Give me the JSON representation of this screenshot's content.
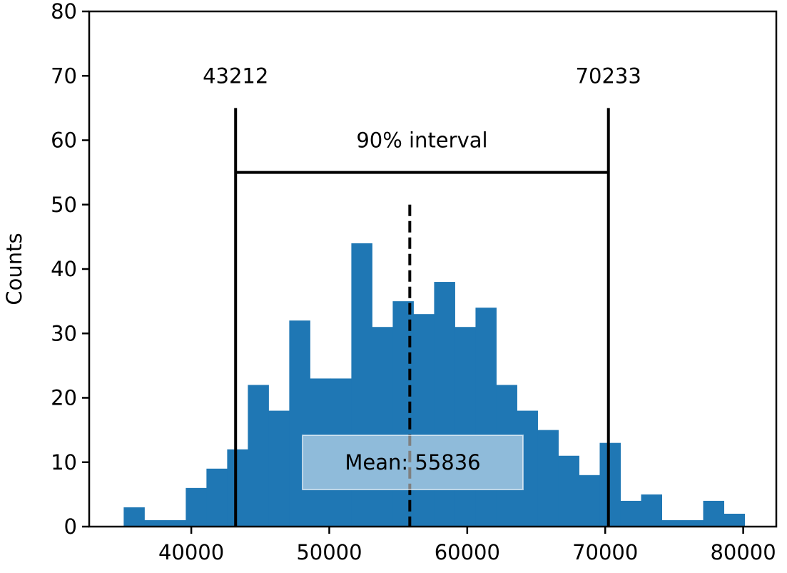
{
  "chart_data": {
    "type": "bar",
    "subtype": "histogram",
    "title": "",
    "xlabel": "",
    "ylabel": "Counts",
    "xlim": [
      32600,
      82400
    ],
    "ylim": [
      0,
      80
    ],
    "grid": false,
    "legend": null,
    "bar_color": "#1f77b4",
    "bin_start": 35100,
    "bin_width": 1500,
    "bins": [
      {
        "x0": 35100,
        "x1": 36600,
        "count": 3
      },
      {
        "x0": 36600,
        "x1": 38100,
        "count": 1
      },
      {
        "x0": 38100,
        "x1": 39600,
        "count": 1
      },
      {
        "x0": 39600,
        "x1": 41100,
        "count": 6
      },
      {
        "x0": 41100,
        "x1": 42600,
        "count": 9
      },
      {
        "x0": 42600,
        "x1": 44100,
        "count": 12
      },
      {
        "x0": 44100,
        "x1": 45600,
        "count": 22
      },
      {
        "x0": 45600,
        "x1": 47100,
        "count": 18
      },
      {
        "x0": 47100,
        "x1": 48600,
        "count": 32
      },
      {
        "x0": 48600,
        "x1": 50100,
        "count": 23
      },
      {
        "x0": 50100,
        "x1": 51600,
        "count": 23
      },
      {
        "x0": 51600,
        "x1": 53100,
        "count": 44
      },
      {
        "x0": 53100,
        "x1": 54600,
        "count": 31
      },
      {
        "x0": 54600,
        "x1": 56100,
        "count": 35
      },
      {
        "x0": 56100,
        "x1": 57600,
        "count": 33
      },
      {
        "x0": 57600,
        "x1": 59100,
        "count": 38
      },
      {
        "x0": 59100,
        "x1": 60600,
        "count": 31
      },
      {
        "x0": 60600,
        "x1": 62100,
        "count": 34
      },
      {
        "x0": 62100,
        "x1": 63600,
        "count": 22
      },
      {
        "x0": 63600,
        "x1": 65100,
        "count": 18
      },
      {
        "x0": 65100,
        "x1": 66600,
        "count": 15
      },
      {
        "x0": 66600,
        "x1": 68100,
        "count": 11
      },
      {
        "x0": 68100,
        "x1": 69600,
        "count": 8
      },
      {
        "x0": 69600,
        "x1": 71100,
        "count": 13
      },
      {
        "x0": 71100,
        "x1": 72600,
        "count": 4
      },
      {
        "x0": 72600,
        "x1": 74100,
        "count": 5
      },
      {
        "x0": 74100,
        "x1": 75600,
        "count": 1
      },
      {
        "x0": 75600,
        "x1": 77100,
        "count": 1
      },
      {
        "x0": 77100,
        "x1": 78600,
        "count": 4
      },
      {
        "x0": 78600,
        "x1": 80100,
        "count": 2
      }
    ],
    "xticks": [
      40000,
      50000,
      60000,
      70000,
      80000
    ],
    "xtick_labels": [
      "40000",
      "50000",
      "60000",
      "70000",
      "80000"
    ],
    "yticks": [
      0,
      10,
      20,
      30,
      40,
      50,
      60,
      70,
      80
    ],
    "ytick_labels": [
      "0",
      "10",
      "20",
      "30",
      "40",
      "50",
      "60",
      "70",
      "80"
    ],
    "annotations": {
      "interval_lower": {
        "value": 43212,
        "label": "43212",
        "line_top": 65,
        "label_y": 70
      },
      "interval_upper": {
        "value": 70233,
        "label": "70233",
        "line_top": 65,
        "label_y": 70
      },
      "interval_bar": {
        "y": 55,
        "label": "90% interval",
        "label_y": 60
      },
      "mean": {
        "value": 55836,
        "label": "Mean: 55836",
        "line_top": 50,
        "label_y": 10,
        "style": "dashed"
      }
    }
  }
}
